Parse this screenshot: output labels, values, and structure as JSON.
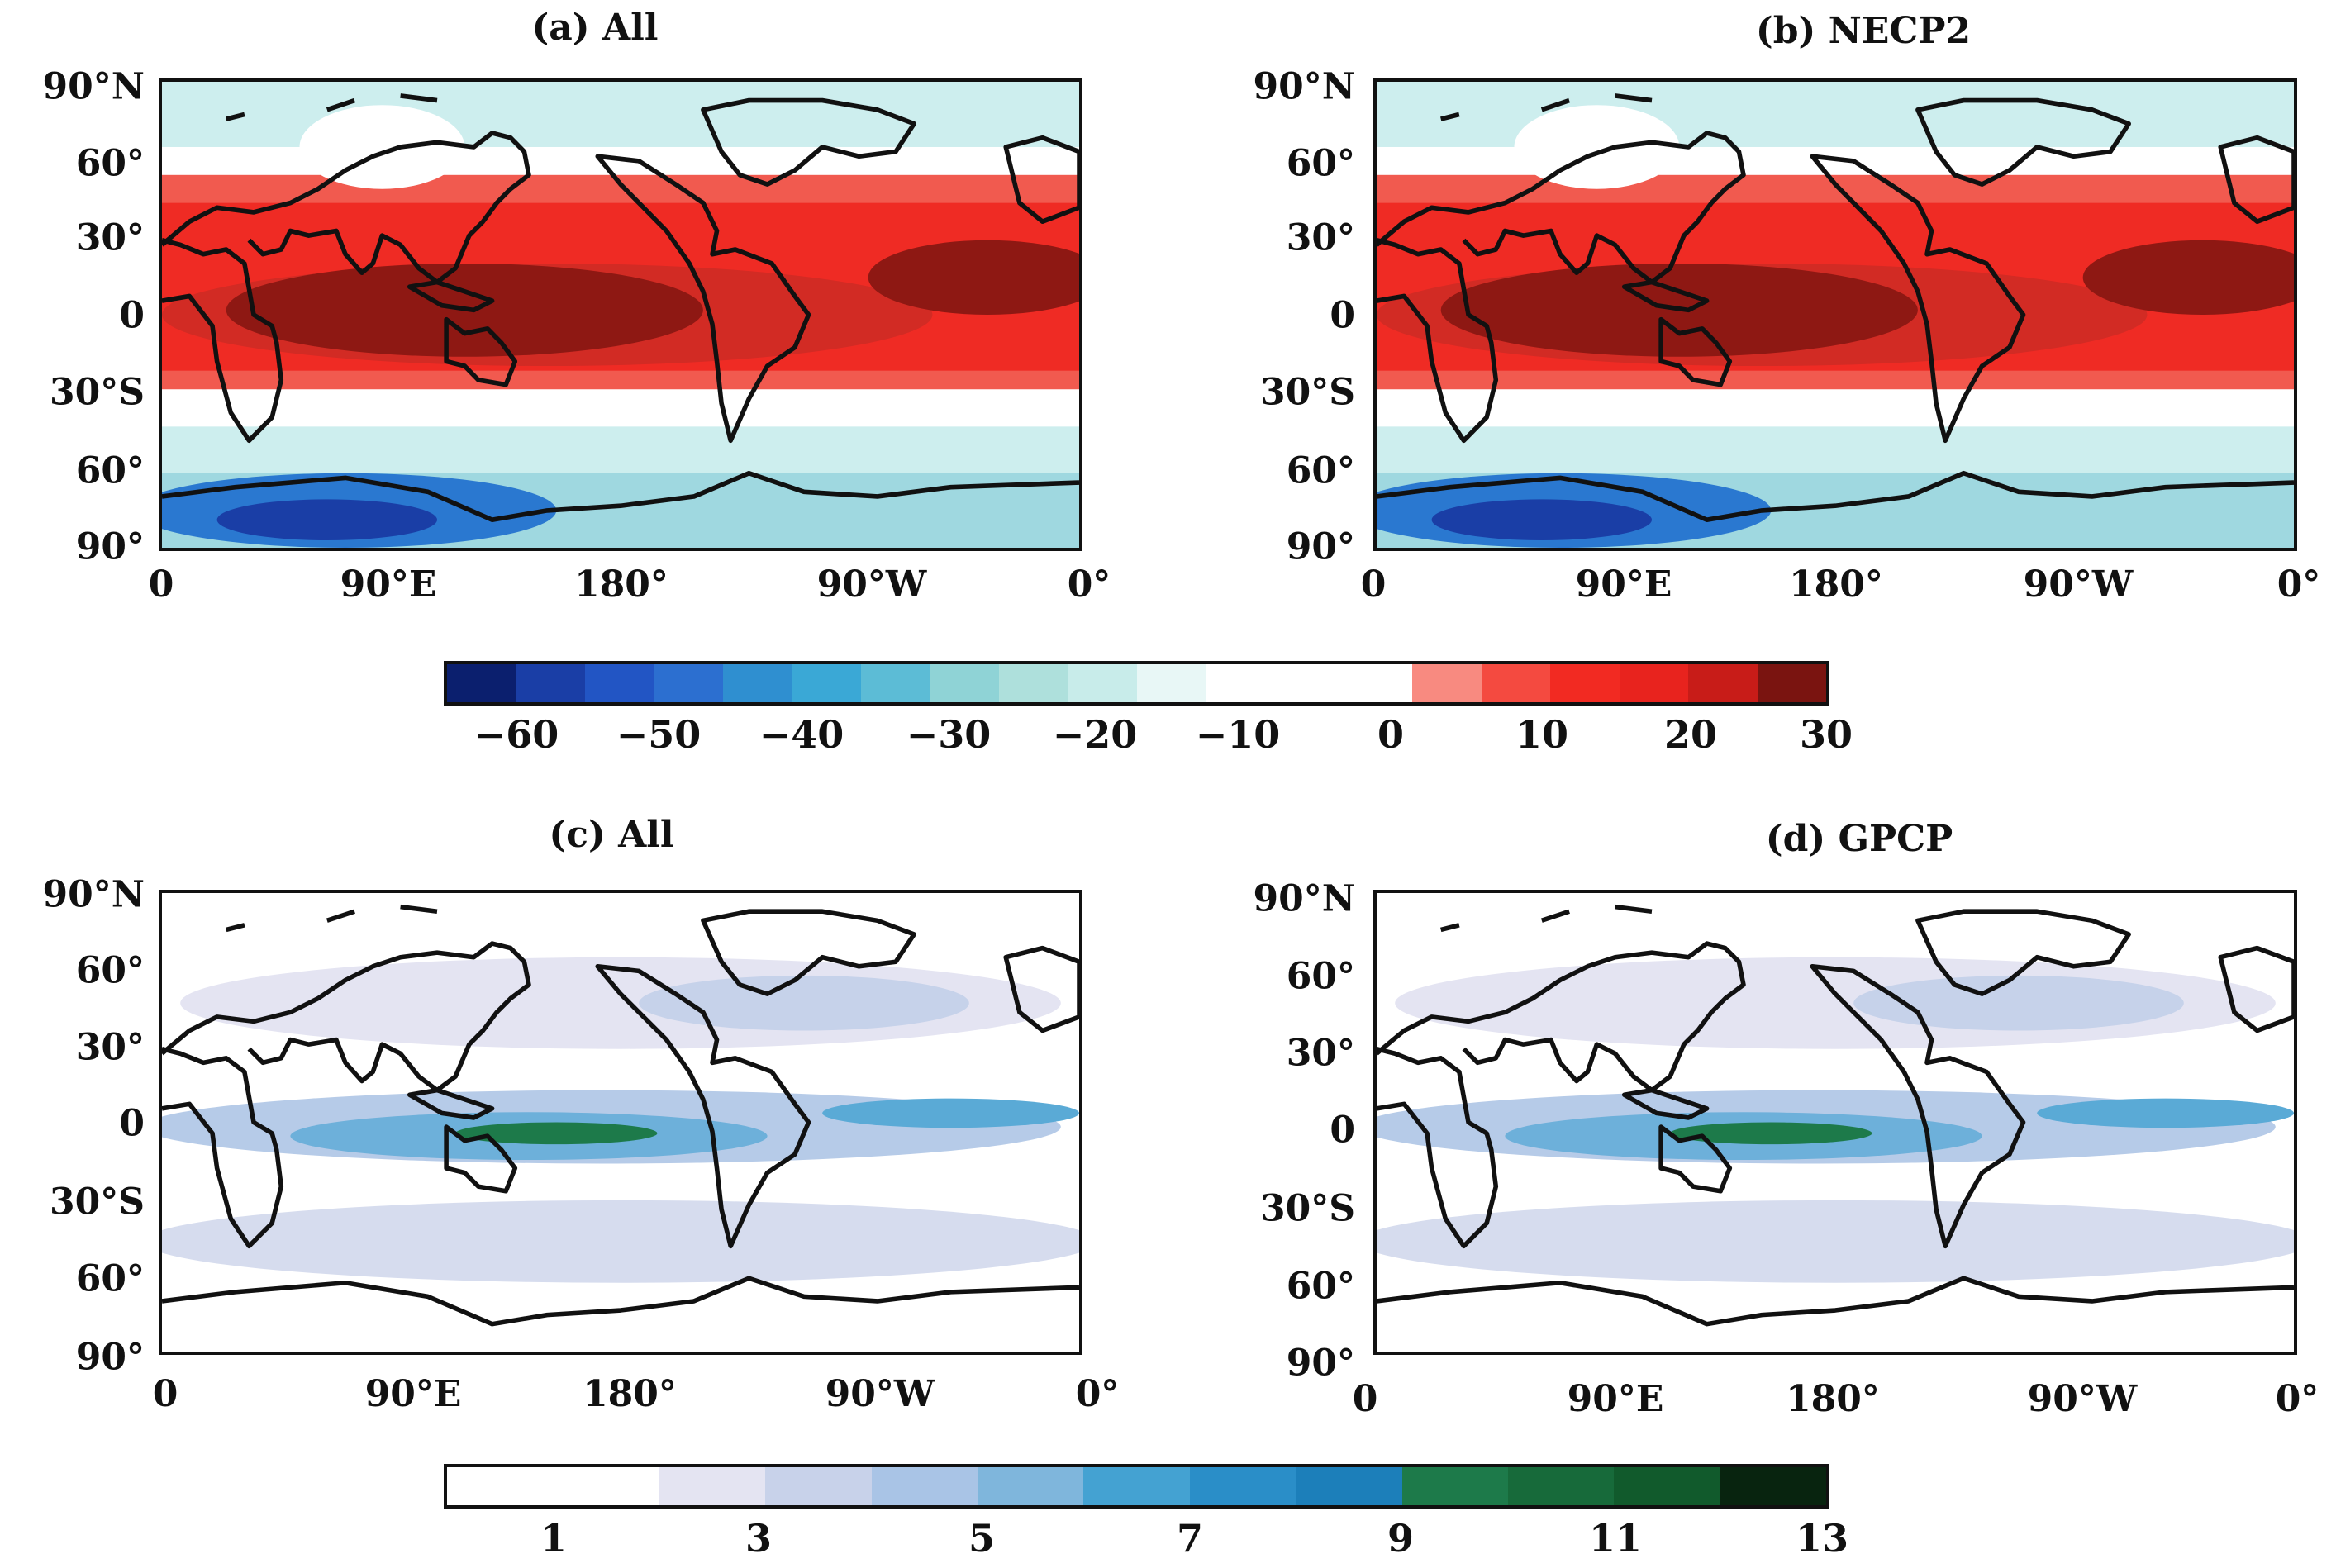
{
  "panels": [
    {
      "id": "a",
      "title": "(a) All",
      "field": "temp"
    },
    {
      "id": "b",
      "title": "(b) NECP2",
      "field": "temp"
    },
    {
      "id": "c",
      "title": "(c) All",
      "field": "precip"
    },
    {
      "id": "d",
      "title": "(d) GPCP",
      "field": "precip"
    }
  ],
  "lat_labels": [
    "90°N",
    "60°",
    "30°",
    "0",
    "30°S",
    "60°",
    "90°"
  ],
  "lon_labels": [
    "0",
    "90°E",
    "180°",
    "90°W",
    "0°"
  ],
  "colorbar_top": {
    "labels": [
      "-60",
      "-50",
      "-40",
      "-30",
      "-20",
      "-10",
      "0",
      "10",
      "20",
      "30"
    ],
    "colors": [
      "#0b1f6e",
      "#1a3ea6",
      "#2255c4",
      "#2c6fd0",
      "#2f8fd0",
      "#3aa8d6",
      "#5cbcd6",
      "#8fd3d6",
      "#aee0dc",
      "#c8ecea",
      "#e8f7f6",
      "#ffffff",
      "#ffffff",
      "#ffffff",
      "#f88a80",
      "#f44a40",
      "#f22a22",
      "#e8231e",
      "#c81c18",
      "#7a1410"
    ]
  },
  "colorbar_bottom": {
    "labels": [
      "1",
      "3",
      "5",
      "7",
      "9",
      "11",
      "13"
    ],
    "colors": [
      "#ffffff",
      "#ffffff",
      "#e4e4f2",
      "#c8d2ea",
      "#a9c4e6",
      "#7fb6dc",
      "#44a2d2",
      "#2a8ec8",
      "#1c7fba",
      "#1d7a4a",
      "#176a3a",
      "#115a2c",
      "#08240f"
    ]
  }
}
